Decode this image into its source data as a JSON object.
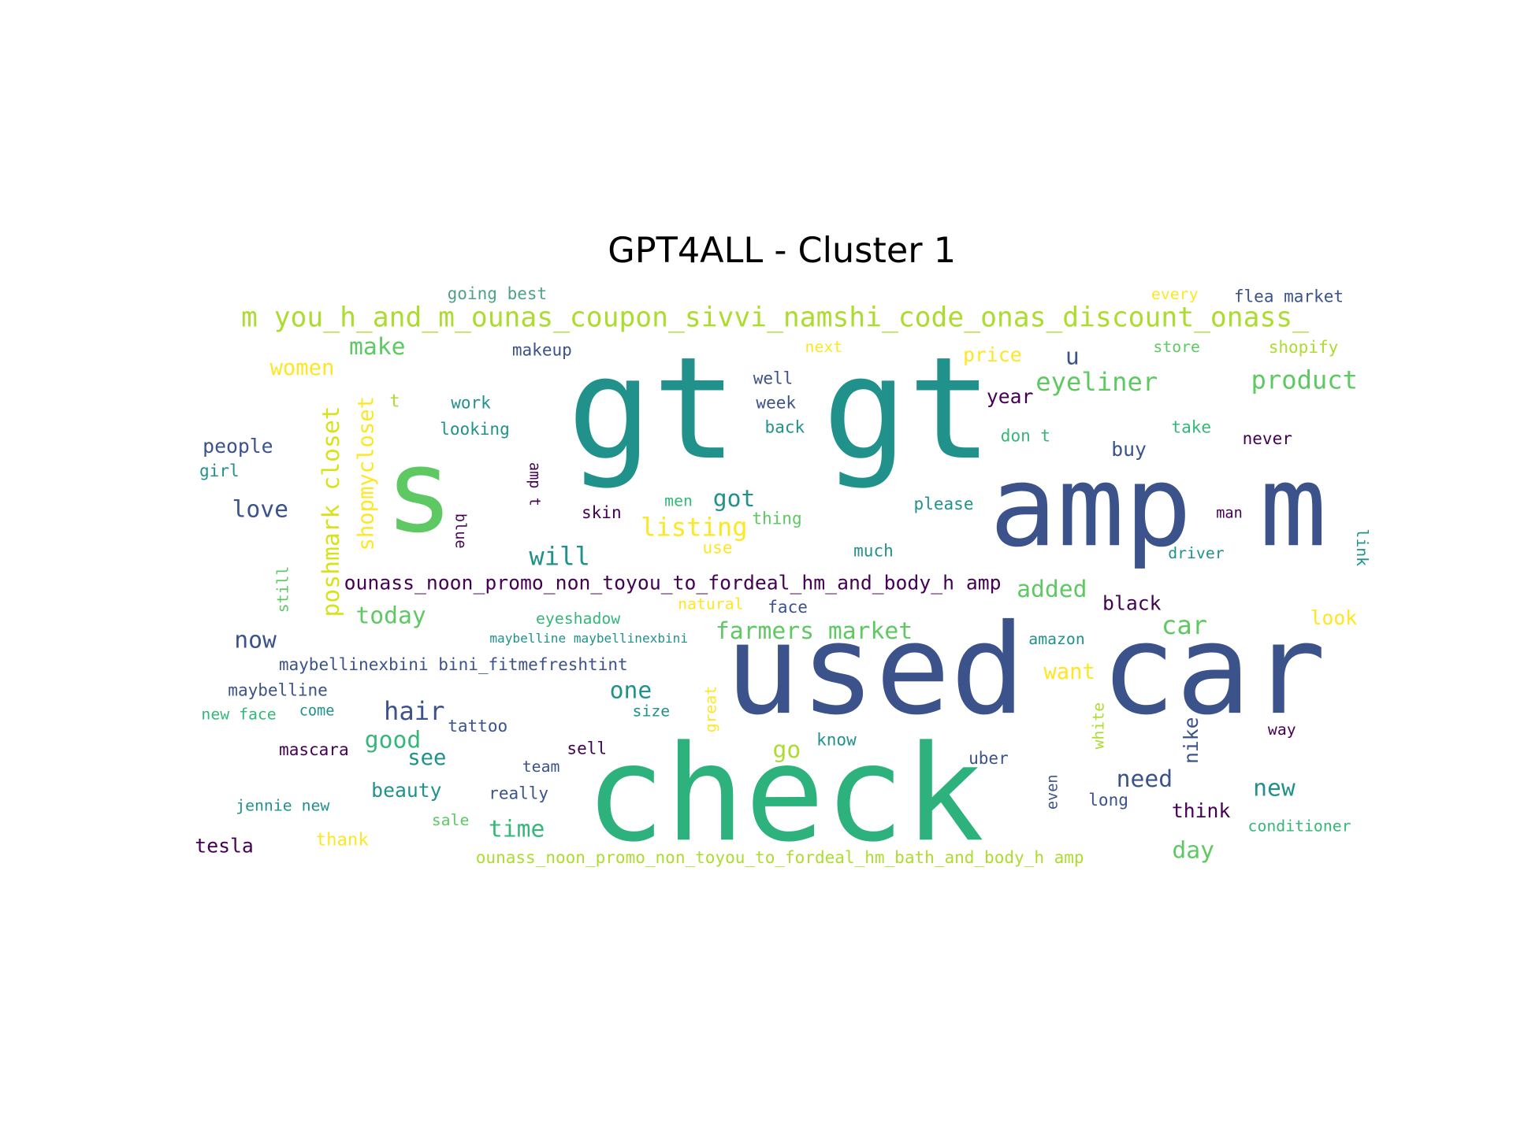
{
  "title": "GPT4ALL - Cluster 1",
  "words": [
    {
      "text": "gt gt",
      "color": "#21918c"
    },
    {
      "text": "s",
      "color": "#5ec962"
    },
    {
      "text": "amp m",
      "color": "#3b528b"
    },
    {
      "text": "used car",
      "color": "#3b528b"
    },
    {
      "text": "check",
      "color": "#2db27d"
    },
    {
      "text": "m you_h_and_m_ounas_coupon_sivvi_namshi_code_onas_discount_onass_",
      "color": "#addc30"
    },
    {
      "text": "ounass_noon_promo_non_toyou_to_fordeal_hm_and_body_h amp",
      "color": "#440154"
    },
    {
      "text": "ounass_noon_promo_non_toyou_to_fordeal_hm_bath_and_body_h amp",
      "color": "#addc30"
    },
    {
      "text": "going best",
      "color": "#4fa08a"
    },
    {
      "text": "every",
      "color": "#fde725"
    },
    {
      "text": "flea market",
      "color": "#3b528b"
    },
    {
      "text": "make",
      "color": "#5ec962"
    },
    {
      "text": "makeup",
      "color": "#3b528b"
    },
    {
      "text": "next",
      "color": "#fde725"
    },
    {
      "text": "price",
      "color": "#fde725"
    },
    {
      "text": "u",
      "color": "#3b528b"
    },
    {
      "text": "store",
      "color": "#5ec962"
    },
    {
      "text": "shopify",
      "color": "#addc30"
    },
    {
      "text": "women",
      "color": "#fde725"
    },
    {
      "text": "well",
      "color": "#3b528b"
    },
    {
      "text": "eyeliner",
      "color": "#5ec962"
    },
    {
      "text": "product",
      "color": "#5ec962"
    },
    {
      "text": "t",
      "color": "#addc30"
    },
    {
      "text": "work",
      "color": "#21918c"
    },
    {
      "text": "week",
      "color": "#3b528b"
    },
    {
      "text": "year",
      "color": "#440154"
    },
    {
      "text": "looking",
      "color": "#21918c"
    },
    {
      "text": "back",
      "color": "#21918c"
    },
    {
      "text": "don t",
      "color": "#35b779"
    },
    {
      "text": "take",
      "color": "#35b779"
    },
    {
      "text": "never",
      "color": "#440154"
    },
    {
      "text": "people",
      "color": "#3b528b"
    },
    {
      "text": "buy",
      "color": "#3b528b"
    },
    {
      "text": "girl",
      "color": "#21918c"
    },
    {
      "text": "poshmark closet",
      "color": "#d8e219"
    },
    {
      "text": "shopmycloset",
      "color": "#fde725"
    },
    {
      "text": "amp t",
      "color": "#440154"
    },
    {
      "text": "blue",
      "color": "#440154"
    },
    {
      "text": "love",
      "color": "#3b528b"
    },
    {
      "text": "skin",
      "color": "#440154"
    },
    {
      "text": "men",
      "color": "#35b779"
    },
    {
      "text": "got",
      "color": "#21918c"
    },
    {
      "text": "thing",
      "color": "#5ec962"
    },
    {
      "text": "please",
      "color": "#21918c"
    },
    {
      "text": "man",
      "color": "#440154"
    },
    {
      "text": "listing",
      "color": "#fde725"
    },
    {
      "text": "use",
      "color": "#fde725"
    },
    {
      "text": "much",
      "color": "#21918c"
    },
    {
      "text": "driver",
      "color": "#21918c"
    },
    {
      "text": "link",
      "color": "#21918c"
    },
    {
      "text": "will",
      "color": "#21918c"
    },
    {
      "text": "still",
      "color": "#5ec962"
    },
    {
      "text": "added",
      "color": "#5ec962"
    },
    {
      "text": "black",
      "color": "#440154"
    },
    {
      "text": "today",
      "color": "#5ec962"
    },
    {
      "text": "eyeshadow",
      "color": "#35b779"
    },
    {
      "text": "natural",
      "color": "#fde725"
    },
    {
      "text": "face",
      "color": "#3b528b"
    },
    {
      "text": "car",
      "color": "#5ec962"
    },
    {
      "text": "look",
      "color": "#fde725"
    },
    {
      "text": "now",
      "color": "#3b528b"
    },
    {
      "text": "maybelline maybellinexbini",
      "color": "#21918c"
    },
    {
      "text": "farmers market",
      "color": "#5ec962"
    },
    {
      "text": "amazon",
      "color": "#21918c"
    },
    {
      "text": "maybellinexbini bini_fitmefreshtint",
      "color": "#3b528b"
    },
    {
      "text": "want",
      "color": "#fde725"
    },
    {
      "text": "maybelline",
      "color": "#3b528b"
    },
    {
      "text": "one",
      "color": "#21918c"
    },
    {
      "text": "great",
      "color": "#fde725"
    },
    {
      "text": "hair",
      "color": "#3b528b"
    },
    {
      "text": "size",
      "color": "#21918c"
    },
    {
      "text": "new face",
      "color": "#35b779"
    },
    {
      "text": "come",
      "color": "#21918c"
    },
    {
      "text": "white",
      "color": "#addc30"
    },
    {
      "text": "nike",
      "color": "#3b528b"
    },
    {
      "text": "tattoo",
      "color": "#3b528b"
    },
    {
      "text": "way",
      "color": "#440154"
    },
    {
      "text": "good",
      "color": "#35b779"
    },
    {
      "text": "know",
      "color": "#21918c"
    },
    {
      "text": "mascara",
      "color": "#440154"
    },
    {
      "text": "sell",
      "color": "#440154"
    },
    {
      "text": "go",
      "color": "#addc30"
    },
    {
      "text": "see",
      "color": "#21918c"
    },
    {
      "text": "uber",
      "color": "#3b528b"
    },
    {
      "text": "team",
      "color": "#3b528b"
    },
    {
      "text": "need",
      "color": "#3b528b"
    },
    {
      "text": "new",
      "color": "#21918c"
    },
    {
      "text": "beauty",
      "color": "#21918c"
    },
    {
      "text": "really",
      "color": "#3b528b"
    },
    {
      "text": "even",
      "color": "#3b528b"
    },
    {
      "text": "long",
      "color": "#3b528b"
    },
    {
      "text": "jennie new",
      "color": "#21918c"
    },
    {
      "text": "think",
      "color": "#440154"
    },
    {
      "text": "sale",
      "color": "#5ec962"
    },
    {
      "text": "time",
      "color": "#35b779"
    },
    {
      "text": "conditioner",
      "color": "#35b779"
    },
    {
      "text": "thank",
      "color": "#fde725"
    },
    {
      "text": "tesla",
      "color": "#440154"
    },
    {
      "text": "day",
      "color": "#5ec962"
    }
  ]
}
